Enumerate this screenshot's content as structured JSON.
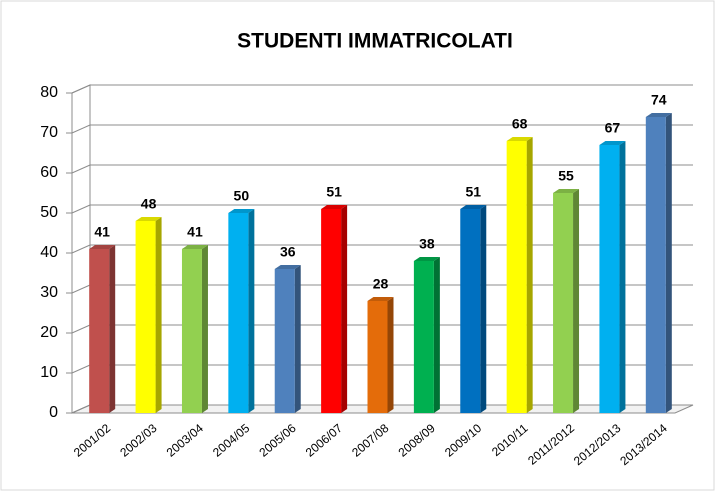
{
  "chart_data": {
    "type": "bar3d",
    "title": "STUDENTI IMMATRICOLATI",
    "categories": [
      "2001/02",
      "2002/03",
      "2003/04",
      "2004/05",
      "2005/06",
      "2006/07",
      "2007/08",
      "2008/09",
      "2009/10",
      "2010/11",
      "2011/2012",
      "2012/2013",
      "2013/2014"
    ],
    "values": [
      41,
      48,
      41,
      50,
      36,
      51,
      28,
      38,
      51,
      68,
      55,
      67,
      74
    ],
    "colors": [
      "#c0504d",
      "#ffff00",
      "#92d050",
      "#00b0f0",
      "#4f81bd",
      "#ff0000",
      "#e46c0a",
      "#00b050",
      "#0070c0",
      "#ffff00",
      "#92d050",
      "#00b0f0",
      "#4f81bd"
    ],
    "ylim": [
      0,
      80
    ],
    "yticks": [
      0,
      10,
      20,
      30,
      40,
      50,
      60,
      70,
      80
    ],
    "grid": true
  }
}
